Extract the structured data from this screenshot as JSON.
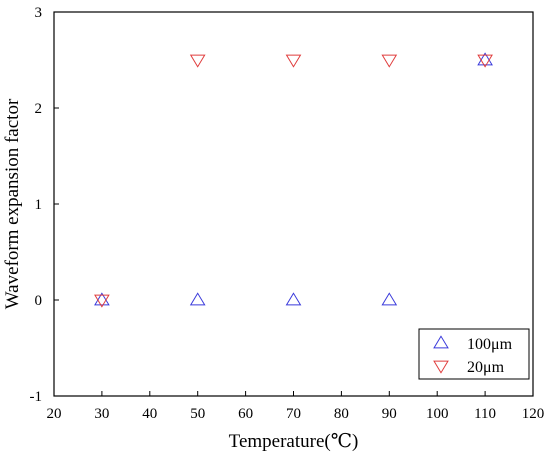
{
  "chart_data": {
    "type": "scatter",
    "title": "",
    "xlabel": "Temperature(℃)",
    "ylabel": "Waveform expansion factor",
    "xlim": [
      20,
      120
    ],
    "ylim": [
      -1,
      3
    ],
    "xticks": [
      20,
      30,
      40,
      50,
      60,
      70,
      80,
      90,
      100,
      110,
      120
    ],
    "yticks": [
      -1,
      0,
      1,
      2,
      3
    ],
    "grid": false,
    "legend_position": "bottom-right",
    "series": [
      {
        "name": "100μm",
        "marker": "triangle-up",
        "color": "#3a3adb",
        "x": [
          30,
          50,
          70,
          90,
          110
        ],
        "y": [
          0,
          0,
          0,
          0,
          2.5
        ]
      },
      {
        "name": "20μm",
        "marker": "triangle-down",
        "color": "#e03c3c",
        "x": [
          30,
          50,
          70,
          90,
          110
        ],
        "y": [
          0,
          2.5,
          2.5,
          2.5,
          2.5
        ]
      }
    ]
  }
}
